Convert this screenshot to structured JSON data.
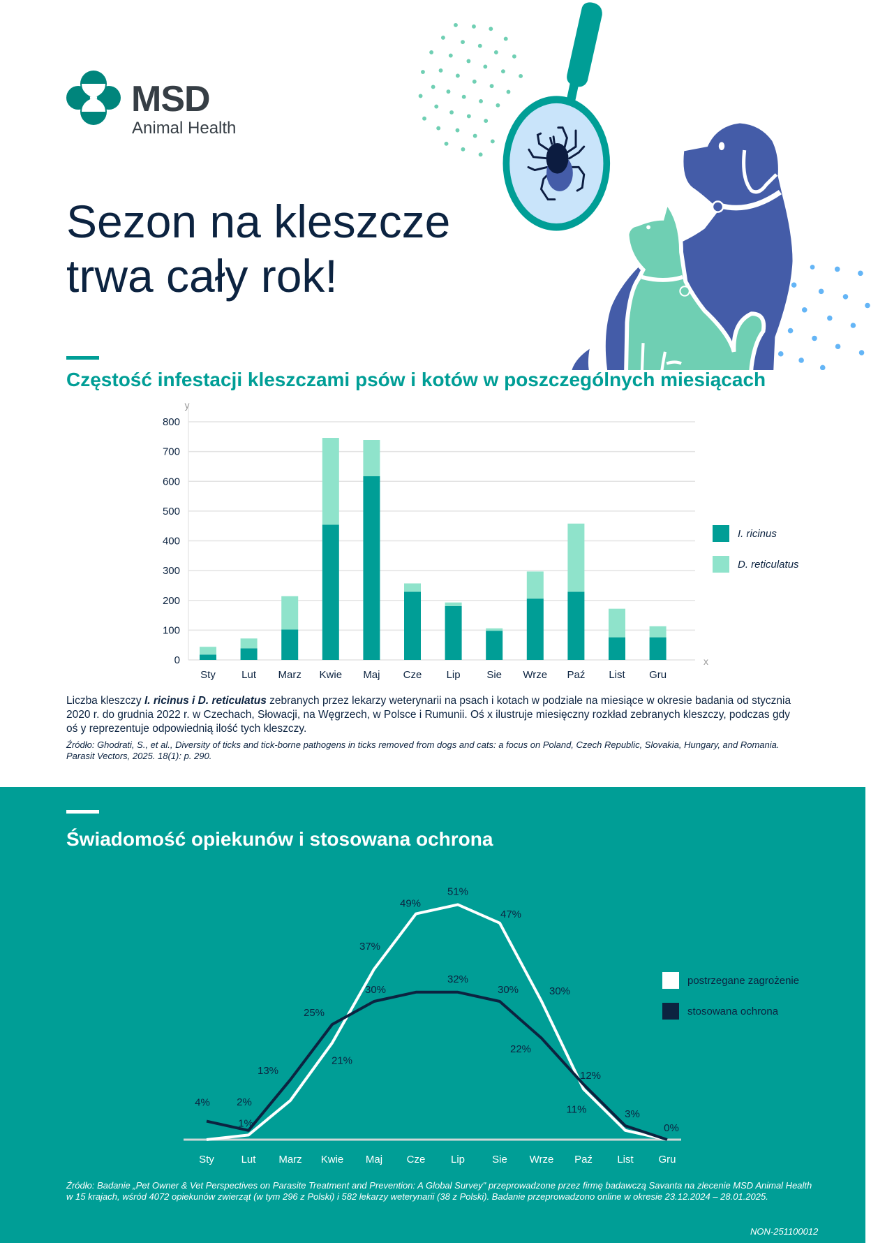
{
  "brand": {
    "name": "MSD",
    "subtitle": "Animal Health",
    "colors": {
      "teal": "#009e96",
      "navy": "#0c2340",
      "light": "#8fe3cb"
    }
  },
  "hero": {
    "title_line1": "Sezon na kleszcze",
    "title_line2": "trwa cały rok!"
  },
  "section1": {
    "title": "Częstość infestacji kleszczami psów i kotów w poszczególnych miesiącach",
    "caption_pre": "Liczba kleszczy ",
    "caption_em": "I. ricinus i D. reticulatus",
    "caption_post": " zebranych przez lekarzy weterynarii na psach i kotach w podziale na miesiące w okresie badania od stycznia 2020 r. do grudnia 2022 r. w Czechach, Słowacji, na Węgrzech, w Polsce i Rumunii. Oś x ilustruje miesięczny rozkład zebranych kleszczy, podczas gdy oś y reprezentuje odpowiednią ilość tych kleszczy.",
    "source": "Źródło: Ghodrati, S., et al., Diversity of ticks and tick-borne pathogens in ticks removed from dogs and cats: a focus on Poland, Czech Republic, Slovakia, Hungary, and Romania. Parasit Vectors, 2025. 18(1): p. 290."
  },
  "section2": {
    "title": "Świadomość opiekunów i stosowana ochrona",
    "footer": "Źródło: Badanie „Pet Owner & Vet Perspectives on Parasite Treatment and Prevention: A Global Survey\" przeprowadzone przez firmę  badawczą Savanta na zlecenie MSD Animal Health w 15 krajach, wśród 4072 opiekunów zwierząt (w tym 296 z Polski) i 582 lekarzy weterynarii (38 z Polski). Badanie przeprowadzono online w okresie 23.12.2024 – 28.01.2025.",
    "code": "NON-251100012"
  },
  "chart_data": [
    {
      "type": "bar",
      "stacked": true,
      "categories": [
        "Sty",
        "Lut",
        "Marz",
        "Kwie",
        "Maj",
        "Cze",
        "Lip",
        "Sie",
        "Wrze",
        "Paź",
        "List",
        "Gru"
      ],
      "series": [
        {
          "name": "I. ricinus",
          "color": "#009e96",
          "values": [
            18,
            39,
            102,
            454,
            617,
            229,
            181,
            98,
            206,
            229,
            76,
            76
          ]
        },
        {
          "name": "D. reticulatus",
          "color": "#8fe3cb",
          "values": [
            26,
            33,
            112,
            292,
            122,
            28,
            12,
            8,
            91,
            229,
            96,
            37
          ]
        }
      ],
      "xlabel": "x",
      "ylabel": "y",
      "ylim": [
        0,
        800
      ],
      "yticks": [
        0,
        100,
        200,
        300,
        400,
        500,
        600,
        700,
        800
      ],
      "grid": true,
      "legend": "right"
    },
    {
      "type": "line",
      "categories": [
        "Sty",
        "Lut",
        "Marz",
        "Kwie",
        "Maj",
        "Cze",
        "Lip",
        "Sie",
        "Wrze",
        "Paź",
        "List",
        "Gru"
      ],
      "series": [
        {
          "name": "postrzegane zagrożenie",
          "color": "#ffffff",
          "values": [
            0,
            1,
            8.5,
            21,
            37,
            49,
            51,
            47,
            30,
            11,
            2,
            0
          ],
          "labels": [
            "",
            "1%",
            "",
            "21%",
            "37%",
            "49%",
            "51%",
            "47%",
            "30%",
            "11%",
            "",
            ""
          ]
        },
        {
          "name": "stosowana ochrona",
          "color": "#0c2340",
          "values": [
            4,
            2,
            13,
            25,
            30,
            32,
            32,
            30,
            22,
            12,
            3,
            0
          ],
          "labels": [
            "4%",
            "2%",
            "13%",
            "25%",
            "30%",
            "",
            "32%",
            "30%",
            "22%",
            "12%",
            "3%",
            "0%"
          ]
        }
      ],
      "ylim": [
        0,
        55
      ],
      "grid": false,
      "legend": "right"
    }
  ]
}
